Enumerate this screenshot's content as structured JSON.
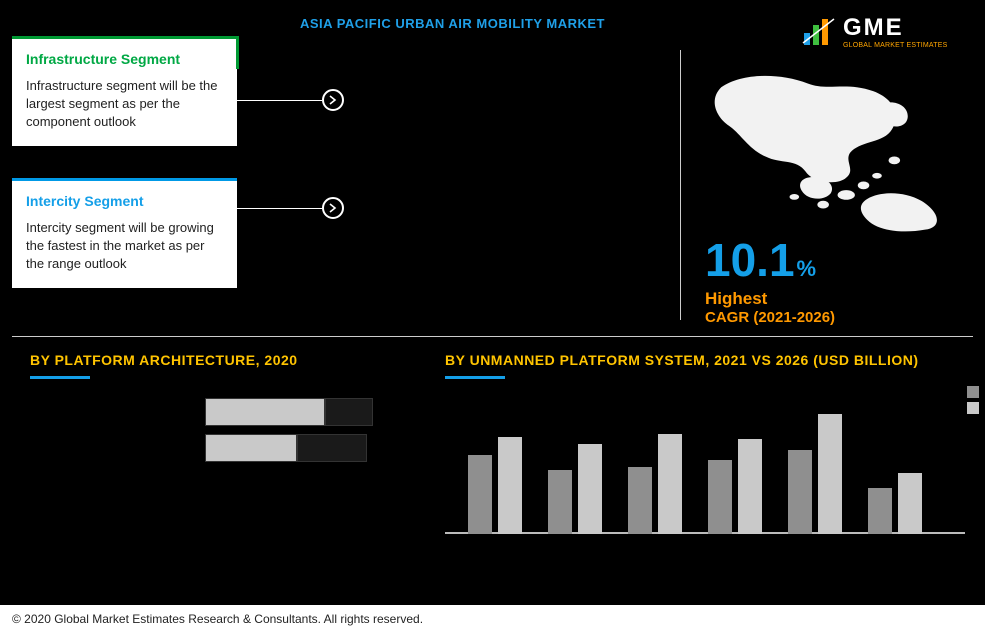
{
  "title": "ASIA PACIFIC URBAN AIR MOBILITY MARKET",
  "title_color": "#1fa0e8",
  "logo": {
    "name": "GME",
    "tagline": "GLOBAL MARKET ESTIMATES"
  },
  "callouts": {
    "infrastructure": {
      "heading": "Infrastructure Segment",
      "body": "Infrastructure segment will be the largest segment as per the component outlook",
      "accent": "#009933"
    },
    "intercity": {
      "heading": "Intercity Segment",
      "body": "Intercity segment will be growing the fastest in the market as per the range outlook",
      "accent": "#0099e6"
    }
  },
  "map_panel": {
    "pct_value": "10.1",
    "pct_symbol": "%",
    "pct_color": "#149fe8",
    "line1": "Highest",
    "line2": "CAGR (2021-2026)",
    "line_color": "#ff9900",
    "map_fill": "#f2f2f2"
  },
  "platform_architecture": {
    "title": "BY PLATFORM ARCHITECTURE, 2020",
    "title_color": "#ffc400",
    "underline_color": "#149fe8",
    "type": "stacked-bar-horizontal",
    "rows": [
      {
        "segments": [
          {
            "color": "#c9c9c9",
            "label_color": "#c9c9c9",
            "width": 120
          },
          {
            "color": "#1a1a1a",
            "label_color": "#1a1a1a",
            "width": 48
          }
        ]
      },
      {
        "segments": [
          {
            "color": "#c9c9c9",
            "label_color": "#c9c9c9",
            "width": 92
          },
          {
            "color": "#1a1a1a",
            "label_color": "#1a1a1a",
            "width": 70
          }
        ]
      }
    ]
  },
  "unmanned_platform": {
    "title": "BY UNMANNED PLATFORM SYSTEM, 2021 VS 2026 (USD BILLION)",
    "title_color": "#ffc400",
    "underline_color": "#149fe8",
    "type": "grouped-bar",
    "series_colors": {
      "y2021": "#8f8f8f",
      "y2026": "#c9c9c9"
    },
    "legend_swatches": [
      "#8f8f8f",
      "#c9c9c9"
    ],
    "y_max": 100,
    "groups": [
      {
        "y2021": 62,
        "y2026": 76
      },
      {
        "y2021": 50,
        "y2026": 70
      },
      {
        "y2021": 52,
        "y2026": 78
      },
      {
        "y2021": 58,
        "y2026": 74
      },
      {
        "y2021": 66,
        "y2026": 94
      },
      {
        "y2021": 36,
        "y2026": 48
      }
    ]
  },
  "footer": "© 2020 Global Market Estimates Research & Consultants. All rights reserved."
}
